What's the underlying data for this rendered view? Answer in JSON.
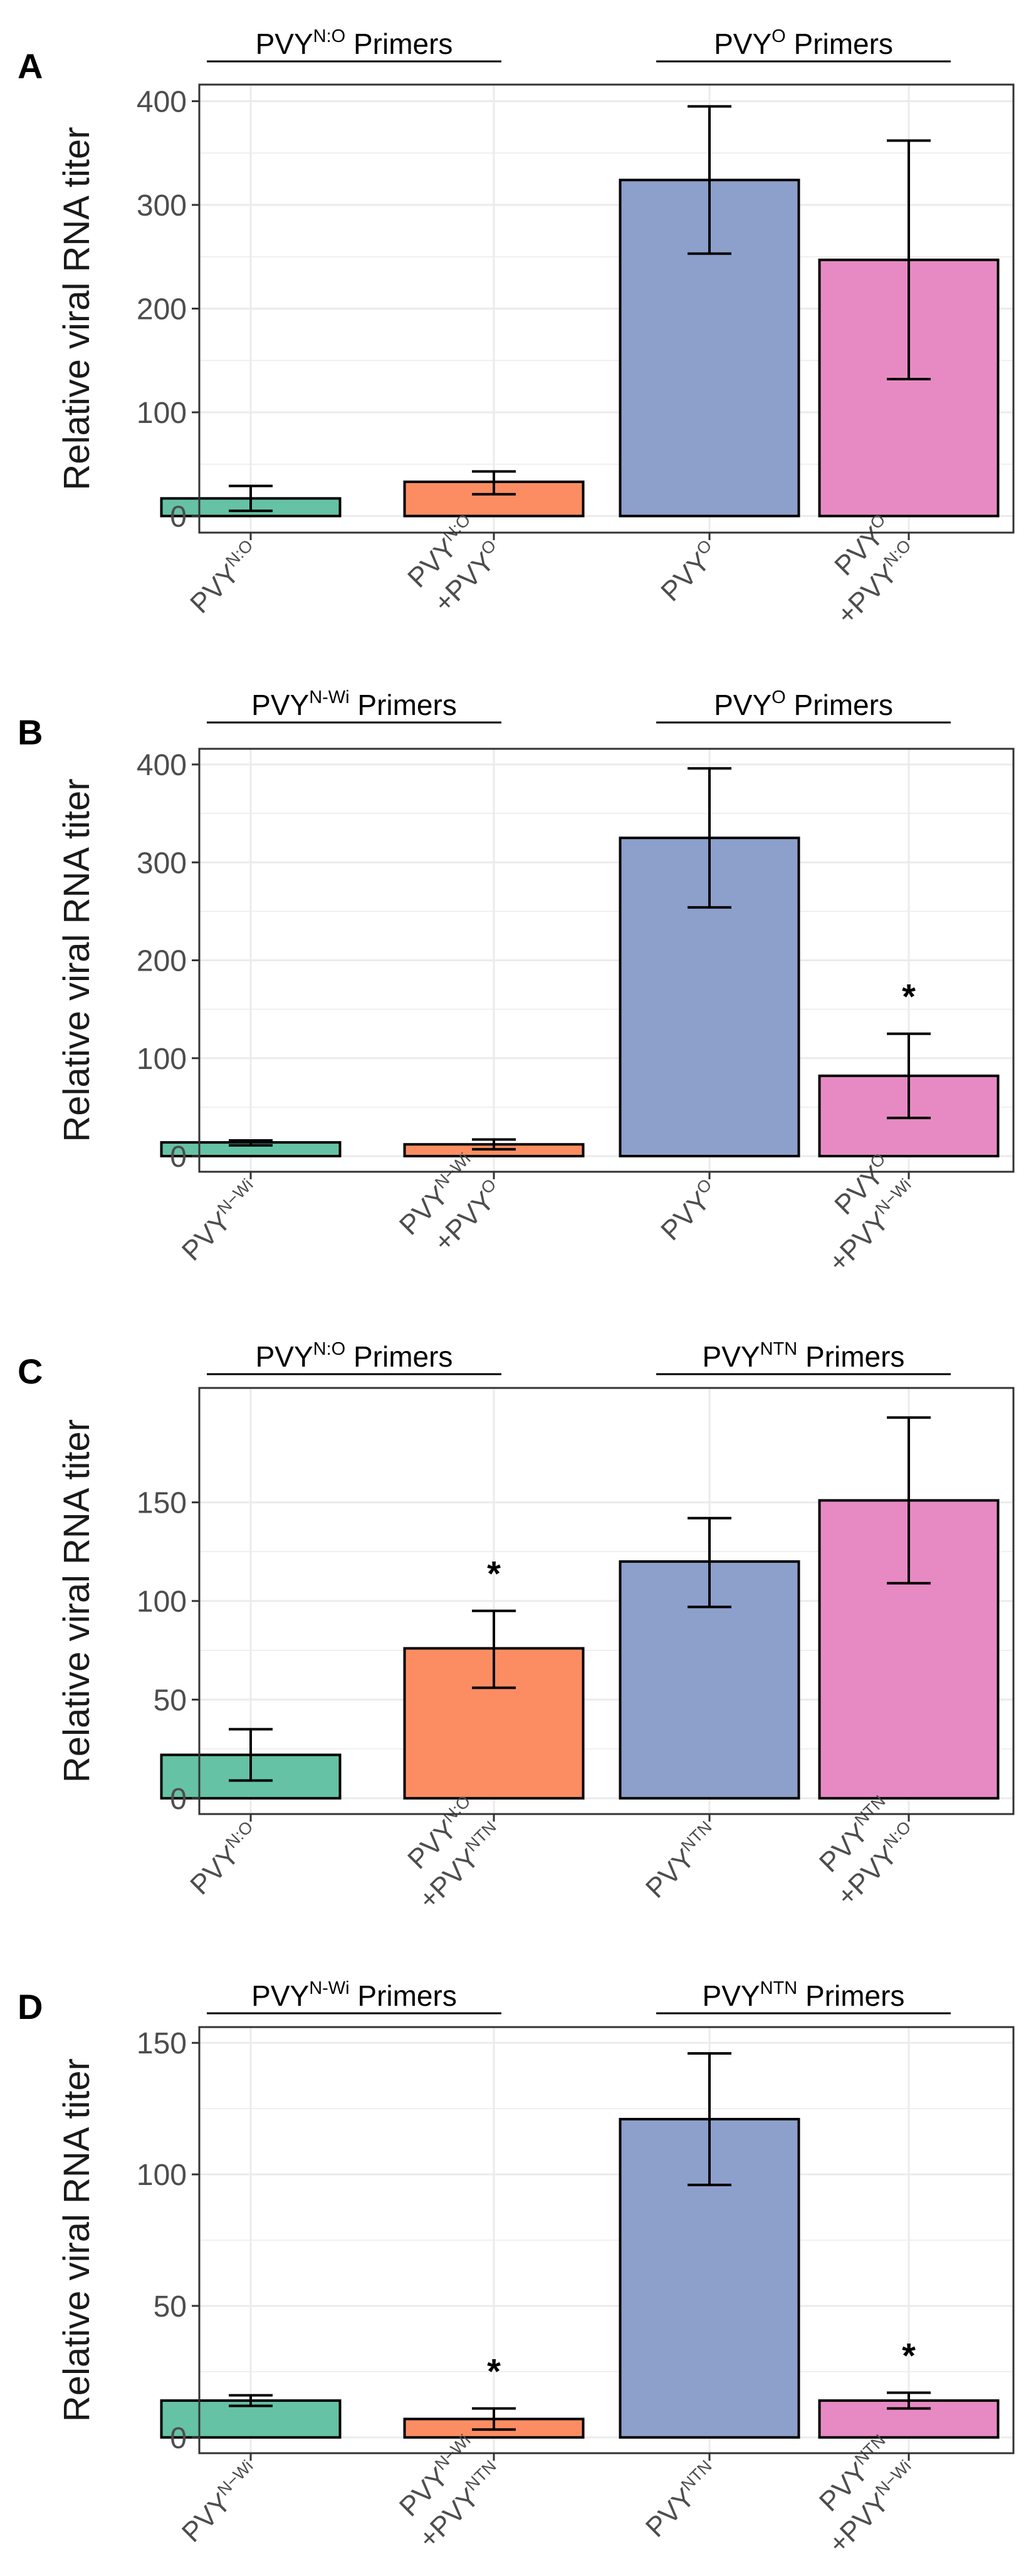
{
  "figure": {
    "colors": {
      "teal": "#66c2a5",
      "orange": "#fc8d62",
      "blue": "#8da0cb",
      "pink": "#e78ac3",
      "grid": "#ebebeb",
      "panel_border": "#333333",
      "text": "#1a1a1a",
      "tick_text": "#4d4d4d"
    },
    "ylabel": "Relative viral RNA titer"
  },
  "chart_data": [
    {
      "panel": "A",
      "type": "bar",
      "ylim": [
        0,
        400
      ],
      "yticks": [
        0,
        100,
        200,
        300,
        400
      ],
      "ylabel": "Relative viral RNA titer",
      "groups": [
        {
          "base": "PVY",
          "sup": "N:O",
          "suffix": " Primers",
          "from": 0,
          "to": 1
        },
        {
          "base": "PVY",
          "sup": "O",
          "suffix": " Primers",
          "from": 2,
          "to": 3
        }
      ],
      "bars": [
        {
          "label": [
            {
              "base": "PVY",
              "sup": "N:O"
            }
          ],
          "value": 17,
          "err_low": 5,
          "err_high": 29,
          "color": "#66c2a5",
          "star": false
        },
        {
          "label": [
            {
              "base": "PVY",
              "sup": "N:O"
            },
            {
              "base": "+PVY",
              "sup": "O"
            }
          ],
          "value": 33,
          "err_low": 21,
          "err_high": 43,
          "color": "#fc8d62",
          "star": false
        },
        {
          "label": [
            {
              "base": "PVY",
              "sup": "O"
            }
          ],
          "value": 324,
          "err_low": 253,
          "err_high": 395,
          "color": "#8da0cb",
          "star": false
        },
        {
          "label": [
            {
              "base": "PVY",
              "sup": "O"
            },
            {
              "base": "+PVY",
              "sup": "N:O"
            }
          ],
          "value": 247,
          "err_low": 132,
          "err_high": 362,
          "color": "#e78ac3",
          "star": false
        }
      ]
    },
    {
      "panel": "B",
      "type": "bar",
      "ylim": [
        0,
        400
      ],
      "yticks": [
        0,
        100,
        200,
        300,
        400
      ],
      "ylabel": "Relative viral RNA titer",
      "groups": [
        {
          "base": "PVY",
          "sup": "N-Wi",
          "suffix": " Primers",
          "from": 0,
          "to": 1
        },
        {
          "base": "PVY",
          "sup": "O",
          "suffix": " Primers",
          "from": 2,
          "to": 3
        }
      ],
      "bars": [
        {
          "label": [
            {
              "base": "PVY",
              "sup": "N−Wi"
            }
          ],
          "value": 14,
          "err_low": 11,
          "err_high": 16,
          "color": "#66c2a5",
          "star": false
        },
        {
          "label": [
            {
              "base": "PVY",
              "sup": "N−Wi"
            },
            {
              "base": "+PVY",
              "sup": "O"
            }
          ],
          "value": 12,
          "err_low": 7,
          "err_high": 17,
          "color": "#fc8d62",
          "star": false
        },
        {
          "label": [
            {
              "base": "PVY",
              "sup": "O"
            }
          ],
          "value": 325,
          "err_low": 254,
          "err_high": 396,
          "color": "#8da0cb",
          "star": false
        },
        {
          "label": [
            {
              "base": "PVY",
              "sup": "O"
            },
            {
              "base": "+PVY",
              "sup": "N−Wi"
            }
          ],
          "value": 82,
          "err_low": 39,
          "err_high": 125,
          "color": "#e78ac3",
          "star": true
        }
      ]
    },
    {
      "panel": "C",
      "type": "bar",
      "ylim": [
        0,
        200
      ],
      "yticks": [
        0,
        50,
        100,
        150
      ],
      "ylabel": "Relative viral RNA titer",
      "groups": [
        {
          "base": "PVY",
          "sup": "N:O",
          "suffix": " Primers",
          "from": 0,
          "to": 1
        },
        {
          "base": "PVY",
          "sup": "NTN",
          "suffix": " Primers",
          "from": 2,
          "to": 3
        }
      ],
      "bars": [
        {
          "label": [
            {
              "base": "PVY",
              "sup": "N:O"
            }
          ],
          "value": 22,
          "err_low": 9,
          "err_high": 35,
          "color": "#66c2a5",
          "star": false
        },
        {
          "label": [
            {
              "base": "PVY",
              "sup": "N:O"
            },
            {
              "base": "+PVY",
              "sup": "NTN"
            }
          ],
          "value": 76,
          "err_low": 56,
          "err_high": 95,
          "color": "#fc8d62",
          "star": true
        },
        {
          "label": [
            {
              "base": "PVY",
              "sup": "NTN"
            }
          ],
          "value": 120,
          "err_low": 97,
          "err_high": 142,
          "color": "#8da0cb",
          "star": false
        },
        {
          "label": [
            {
              "base": "PVY",
              "sup": "NTN"
            },
            {
              "base": "+PVY",
              "sup": "N:O"
            }
          ],
          "value": 151,
          "err_low": 109,
          "err_high": 193,
          "color": "#e78ac3",
          "star": false
        }
      ]
    },
    {
      "panel": "D",
      "type": "bar",
      "ylim": [
        0,
        150
      ],
      "yticks": [
        0,
        50,
        100,
        150
      ],
      "ylabel": "Relative viral RNA titer",
      "groups": [
        {
          "base": "PVY",
          "sup": "N-Wi",
          "suffix": " Primers",
          "from": 0,
          "to": 1
        },
        {
          "base": "PVY",
          "sup": "NTN",
          "suffix": " Primers",
          "from": 2,
          "to": 3
        }
      ],
      "bars": [
        {
          "label": [
            {
              "base": "PVY",
              "sup": "N−Wi"
            }
          ],
          "value": 14,
          "err_low": 12,
          "err_high": 16,
          "color": "#66c2a5",
          "star": false
        },
        {
          "label": [
            {
              "base": "PVY",
              "sup": "N−Wi"
            },
            {
              "base": "+PVY",
              "sup": "NTN"
            }
          ],
          "value": 7,
          "err_low": 3,
          "err_high": 11,
          "color": "#fc8d62",
          "star": true
        },
        {
          "label": [
            {
              "base": "PVY",
              "sup": "NTN"
            }
          ],
          "value": 121,
          "err_low": 96,
          "err_high": 146,
          "color": "#8da0cb",
          "star": false
        },
        {
          "label": [
            {
              "base": "PVY",
              "sup": "NTN"
            },
            {
              "base": "+PVY",
              "sup": "N−Wi"
            }
          ],
          "value": 14,
          "err_low": 11,
          "err_high": 17,
          "color": "#e78ac3",
          "star": true
        }
      ]
    }
  ]
}
